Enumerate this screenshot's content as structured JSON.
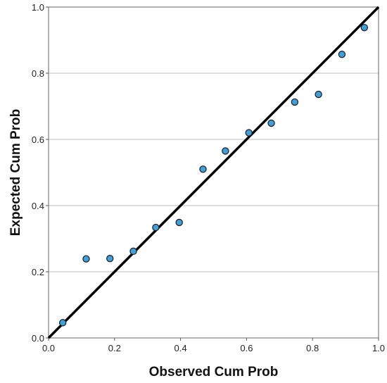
{
  "chart_data": {
    "type": "scatter",
    "title": "",
    "xlabel": "Observed Cum Prob",
    "ylabel": "Expected Cum Prob",
    "xlim": [
      0.0,
      1.0
    ],
    "ylim": [
      0.0,
      1.0
    ],
    "x_ticks": [
      "0.0",
      "0.2",
      "0.4",
      "0.6",
      "0.8",
      "1.0"
    ],
    "y_ticks": [
      "0.0",
      "0.2",
      "0.4",
      "0.6",
      "0.8",
      "1.0"
    ],
    "grid": "horizontal",
    "reference_line": {
      "from": [
        0.0,
        0.0
      ],
      "to": [
        1.0,
        1.0
      ],
      "color": "#000000"
    },
    "points": [
      {
        "x": 0.043,
        "y": 0.046
      },
      {
        "x": 0.114,
        "y": 0.239
      },
      {
        "x": 0.186,
        "y": 0.24
      },
      {
        "x": 0.257,
        "y": 0.262
      },
      {
        "x": 0.325,
        "y": 0.334
      },
      {
        "x": 0.396,
        "y": 0.349
      },
      {
        "x": 0.468,
        "y": 0.51
      },
      {
        "x": 0.536,
        "y": 0.565
      },
      {
        "x": 0.607,
        "y": 0.62
      },
      {
        "x": 0.675,
        "y": 0.649
      },
      {
        "x": 0.746,
        "y": 0.713
      },
      {
        "x": 0.818,
        "y": 0.736
      },
      {
        "x": 0.889,
        "y": 0.857
      },
      {
        "x": 0.957,
        "y": 0.938
      }
    ],
    "marker_color": "#3f9fdb",
    "marker_edge_color": "#1a1a1a"
  }
}
